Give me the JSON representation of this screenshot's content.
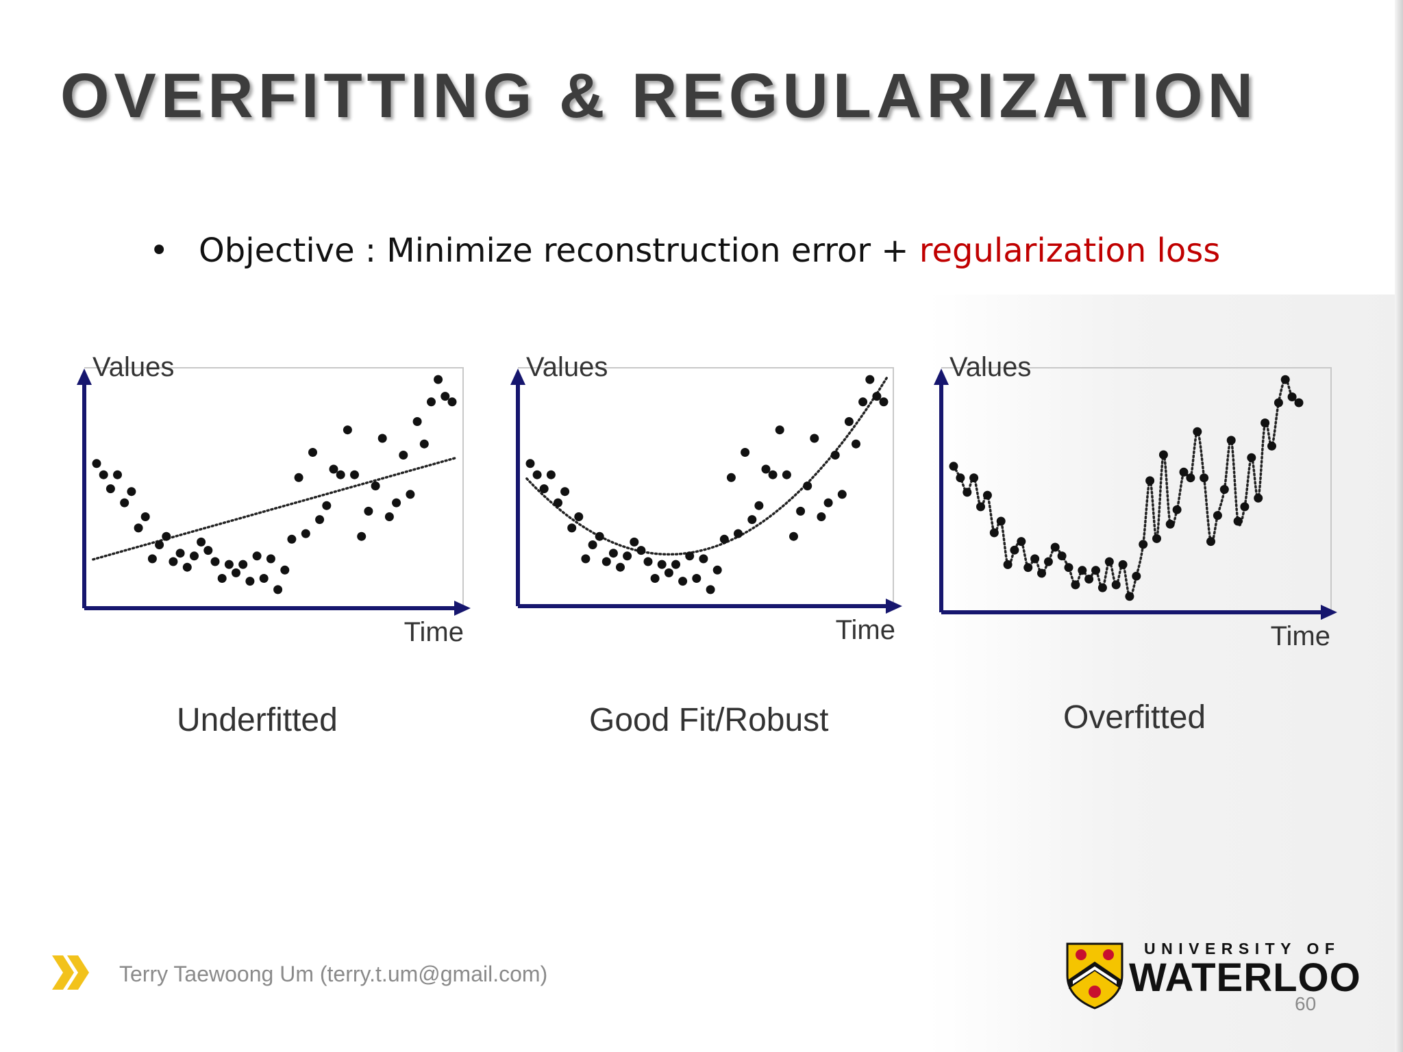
{
  "title": "OVERFITTING & REGULARIZATION",
  "bullet": {
    "prefix": "Objective : Minimize reconstruction error + ",
    "highlight": "regularization loss"
  },
  "captions": [
    "Underfitted",
    "Good Fit/Robust",
    "Overfitted"
  ],
  "chart_data": [
    {
      "type": "scatter",
      "title": "Underfitted",
      "xlabel": "Time",
      "ylabel": "Values",
      "points": [
        [
          1,
          66
        ],
        [
          2,
          62
        ],
        [
          3,
          57
        ],
        [
          4,
          62
        ],
        [
          5,
          52
        ],
        [
          6,
          56
        ],
        [
          7,
          43
        ],
        [
          8,
          47
        ],
        [
          9,
          32
        ],
        [
          10,
          37
        ],
        [
          11,
          40
        ],
        [
          12,
          31
        ],
        [
          13,
          34
        ],
        [
          14,
          29
        ],
        [
          15,
          33
        ],
        [
          16,
          38
        ],
        [
          17,
          35
        ],
        [
          18,
          31
        ],
        [
          19,
          25
        ],
        [
          20,
          30
        ],
        [
          21,
          27
        ],
        [
          22,
          30
        ],
        [
          23,
          24
        ],
        [
          24,
          33
        ],
        [
          25,
          25
        ],
        [
          26,
          32
        ],
        [
          27,
          21
        ],
        [
          28,
          28
        ],
        [
          29,
          39
        ],
        [
          30,
          61
        ],
        [
          31,
          41
        ],
        [
          32,
          70
        ],
        [
          33,
          46
        ],
        [
          34,
          51
        ],
        [
          35,
          64
        ],
        [
          36,
          62
        ],
        [
          37,
          78
        ],
        [
          38,
          62
        ],
        [
          39,
          40
        ],
        [
          40,
          49
        ],
        [
          41,
          58
        ],
        [
          42,
          75
        ],
        [
          43,
          47
        ],
        [
          44,
          52
        ],
        [
          45,
          69
        ],
        [
          46,
          55
        ],
        [
          47,
          81
        ],
        [
          48,
          73
        ],
        [
          49,
          88
        ],
        [
          50,
          96
        ],
        [
          51,
          90
        ],
        [
          52,
          88
        ]
      ],
      "fit": "linear"
    },
    {
      "type": "scatter",
      "title": "Good Fit/Robust",
      "xlabel": "Time",
      "ylabel": "Values",
      "points": [
        [
          1,
          66
        ],
        [
          2,
          62
        ],
        [
          3,
          57
        ],
        [
          4,
          62
        ],
        [
          5,
          52
        ],
        [
          6,
          56
        ],
        [
          7,
          43
        ],
        [
          8,
          47
        ],
        [
          9,
          32
        ],
        [
          10,
          37
        ],
        [
          11,
          40
        ],
        [
          12,
          31
        ],
        [
          13,
          34
        ],
        [
          14,
          29
        ],
        [
          15,
          33
        ],
        [
          16,
          38
        ],
        [
          17,
          35
        ],
        [
          18,
          31
        ],
        [
          19,
          25
        ],
        [
          20,
          30
        ],
        [
          21,
          27
        ],
        [
          22,
          30
        ],
        [
          23,
          24
        ],
        [
          24,
          33
        ],
        [
          25,
          25
        ],
        [
          26,
          32
        ],
        [
          27,
          21
        ],
        [
          28,
          28
        ],
        [
          29,
          39
        ],
        [
          30,
          61
        ],
        [
          31,
          41
        ],
        [
          32,
          70
        ],
        [
          33,
          46
        ],
        [
          34,
          51
        ],
        [
          35,
          64
        ],
        [
          36,
          62
        ],
        [
          37,
          78
        ],
        [
          38,
          62
        ],
        [
          39,
          40
        ],
        [
          40,
          49
        ],
        [
          41,
          58
        ],
        [
          42,
          75
        ],
        [
          43,
          47
        ],
        [
          44,
          52
        ],
        [
          45,
          69
        ],
        [
          46,
          55
        ],
        [
          47,
          81
        ],
        [
          48,
          73
        ],
        [
          49,
          88
        ],
        [
          50,
          96
        ],
        [
          51,
          90
        ],
        [
          52,
          88
        ]
      ],
      "fit": "smooth"
    },
    {
      "type": "scatter",
      "title": "Overfitted",
      "xlabel": "Time",
      "ylabel": "Values",
      "points": [
        [
          1,
          66
        ],
        [
          2,
          62
        ],
        [
          3,
          57
        ],
        [
          4,
          62
        ],
        [
          5,
          52
        ],
        [
          6,
          56
        ],
        [
          7,
          43
        ],
        [
          8,
          47
        ],
        [
          9,
          32
        ],
        [
          10,
          37
        ],
        [
          11,
          40
        ],
        [
          12,
          31
        ],
        [
          13,
          34
        ],
        [
          14,
          29
        ],
        [
          15,
          33
        ],
        [
          16,
          38
        ],
        [
          17,
          35
        ],
        [
          18,
          31
        ],
        [
          19,
          25
        ],
        [
          20,
          30
        ],
        [
          21,
          27
        ],
        [
          22,
          30
        ],
        [
          23,
          24
        ],
        [
          24,
          33
        ],
        [
          25,
          25
        ],
        [
          26,
          32
        ],
        [
          27,
          21
        ],
        [
          28,
          28
        ],
        [
          29,
          39
        ],
        [
          30,
          61
        ],
        [
          31,
          41
        ],
        [
          32,
          70
        ],
        [
          33,
          46
        ],
        [
          34,
          51
        ],
        [
          35,
          64
        ],
        [
          36,
          62
        ],
        [
          37,
          78
        ],
        [
          38,
          62
        ],
        [
          39,
          40
        ],
        [
          40,
          49
        ],
        [
          41,
          58
        ],
        [
          42,
          75
        ],
        [
          43,
          47
        ],
        [
          44,
          52
        ],
        [
          45,
          69
        ],
        [
          46,
          55
        ],
        [
          47,
          81
        ],
        [
          48,
          73
        ],
        [
          49,
          88
        ],
        [
          50,
          96
        ],
        [
          51,
          90
        ],
        [
          52,
          88
        ]
      ],
      "fit": "interpolate"
    }
  ],
  "footer": {
    "author": "Terry Taewoong Um (terry.t.um@gmail.com)",
    "page": "60"
  },
  "logo": {
    "line1": "UNIVERSITY OF",
    "line2": "WATERLOO",
    "shield_colors": [
      "#f5c400",
      "#c8102e",
      "#111111"
    ]
  },
  "colors": {
    "axis": "#16166e",
    "accent_red": "#c00000",
    "chevron": "#f2c21b"
  }
}
